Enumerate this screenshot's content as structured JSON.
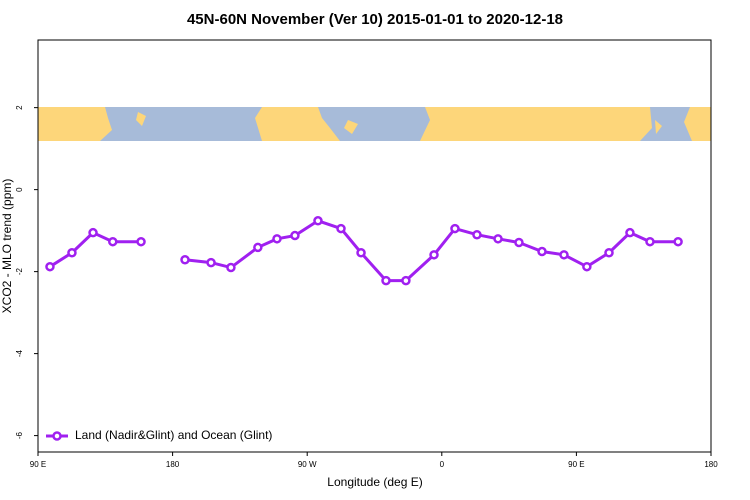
{
  "chart_data": {
    "type": "line",
    "title": "45N-60N November (Ver 10)   2015-01-01 to 2020-12-18",
    "x_label": "Longitude (deg E)",
    "y_label": "XCO2 - MLO trend (ppm)",
    "x": [
      98,
      112.7,
      126.8,
      140,
      158.9,
      null,
      188.3,
      205.7,
      219,
      237,
      249.8,
      261.8,
      277.2,
      292.6,
      306,
      322.7,
      336,
      354.8,
      368.8,
      383.5,
      397.6,
      411.6,
      427,
      441.7,
      457,
      471.8,
      485.8,
      499.2,
      518
    ],
    "series": [
      {
        "name": "Land (Nadir&Glint) and Ocean (Glint)",
        "color": "#a020f0",
        "values": [
          -1.88,
          -1.54,
          -1.05,
          -1.27,
          -1.27,
          null,
          -1.71,
          -1.78,
          -1.9,
          -1.41,
          -1.2,
          -1.12,
          -0.76,
          -0.95,
          -1.54,
          -2.22,
          -2.22,
          -1.59,
          -0.95,
          -1.1,
          -1.2,
          -1.29,
          -1.51,
          -1.59,
          -1.88,
          -1.54,
          -1.05,
          -1.27,
          -1.27
        ]
      }
    ],
    "xlim": [
      90,
      540
    ],
    "xticks": [
      {
        "value": 90,
        "label": "90 E"
      },
      {
        "value": 180,
        "label": "180"
      },
      {
        "value": 270,
        "label": "90 W"
      },
      {
        "value": 360,
        "label": "0"
      },
      {
        "value": 450,
        "label": "90 E"
      },
      {
        "value": 540,
        "label": "180"
      }
    ],
    "ylim": [
      -6.4,
      3.65
    ],
    "yticks": [
      -6,
      -4,
      -2,
      0,
      2
    ],
    "legend": "bottom-left"
  }
}
